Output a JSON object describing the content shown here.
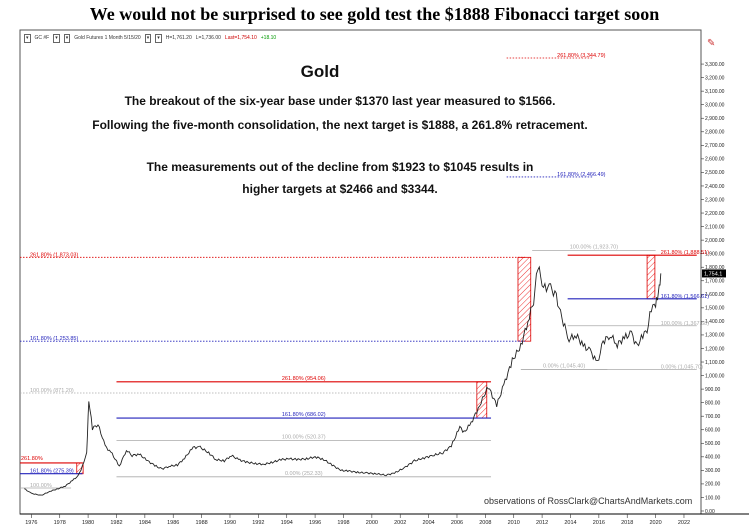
{
  "headline": "We would not be surprised to see gold test the $1888 Fibonacci target soon",
  "toolbar": {
    "symbol": "GC #F",
    "title": "Gold Futures  1 Month  5/15/20",
    "h": "H=1,761.20",
    "l": "L=1,736.00",
    "last": "Last=1,754.10",
    "change": "+18.10"
  },
  "annotation": {
    "title": "Gold",
    "line1": "The breakout of the six-year base under $1370 last year measured to $1566.",
    "line2": "Following the five-month consolidation, the next target is $1888, a 261.8% retracement.",
    "line3": "The measurements out of the decline from $1923 to $1045 results in",
    "line4": "higher targets at $2466 and $3344."
  },
  "credit": "observations of RossClark@ChartsAndMarkets.com",
  "colors": {
    "price": "#222222",
    "red": "#dd0000",
    "blue": "#2222bb",
    "gray": "#aaaaaa",
    "hatch": "#ee3333"
  },
  "chart_data": {
    "type": "line",
    "title": "Gold",
    "xlabel": "",
    "ylabel": "",
    "ylim": [
      0,
      3400
    ],
    "xlim": [
      1975.2,
      2023.2
    ],
    "x_ticks": [
      1976,
      1978,
      1980,
      1982,
      1984,
      1986,
      1988,
      1990,
      1992,
      1994,
      1996,
      1998,
      2000,
      2002,
      2004,
      2006,
      2008,
      2010,
      2012,
      2014,
      2016,
      2018,
      2020,
      2022
    ],
    "y_ticks": [
      0,
      100,
      200,
      300,
      400,
      500,
      600,
      700,
      800,
      900,
      1000,
      1100,
      1200,
      1300,
      1400,
      1500,
      1600,
      1700,
      1800,
      1900,
      2000,
      2100,
      2200,
      2300,
      2400,
      2500,
      2600,
      2700,
      2800,
      2900,
      3000,
      3100,
      3200,
      3300
    ],
    "y_tick_labels": [
      "0.00",
      "100.00",
      "200.00",
      "300.00",
      "400.00",
      "500.00",
      "600.00",
      "700.00",
      "800.00",
      "900.00",
      "1,000.00",
      "1,100.00",
      "1,200.00",
      "1,300.00",
      "1,400.00",
      "1,500.00",
      "1,600.00",
      "1,700.00",
      "1,800.00",
      "1,900.00",
      "2,000.00",
      "2,100.00",
      "2,200.00",
      "2,300.00",
      "2,400.00",
      "2,500.00",
      "2,600.00",
      "2,700.00",
      "2,800.00",
      "2,900.00",
      "3,000.00",
      "3,100.00",
      "3,200.00",
      "3,300.00"
    ],
    "last_price_label": "1,754.1",
    "series": [
      {
        "x": [
          1975.5,
          1976.0,
          1976.7,
          1977.3,
          1977.9,
          1978.4,
          1978.9,
          1979.3,
          1979.6,
          1979.9,
          1980.05,
          1980.3,
          1980.7,
          1981.2,
          1981.7,
          1982.2,
          1982.7,
          1983.1,
          1983.6,
          1984.2,
          1984.8,
          1985.2,
          1985.7,
          1986.3,
          1986.8,
          1987.4,
          1987.9,
          1988.5,
          1989.0,
          1989.6,
          1990.1,
          1990.6,
          1991.2,
          1991.8,
          1992.4,
          1993.0,
          1993.6,
          1994.2,
          1994.8,
          1995.4,
          1996.0,
          1996.6,
          1997.2,
          1997.8,
          1998.4,
          1999.0,
          1999.7,
          2000.3,
          2001.0,
          2001.6,
          2002.3,
          2003.0,
          2003.6,
          2004.3,
          2005.0,
          2005.6,
          2006.2,
          2006.5,
          2007.0,
          2007.6,
          2008.2,
          2008.8,
          2009.3,
          2009.9,
          2010.5,
          2011.0,
          2011.4,
          2011.7,
          2012.1,
          2012.6,
          2013.0,
          2013.4,
          2013.9,
          2014.4,
          2014.9,
          2015.4,
          2015.9,
          2016.3,
          2016.8,
          2017.3,
          2017.8,
          2018.3,
          2018.7,
          2019.0,
          2019.4,
          2019.7,
          2020.0,
          2020.2,
          2020.37
        ],
        "y": [
          165,
          130,
          115,
          145,
          165,
          185,
          225,
          260,
          330,
          430,
          820,
          610,
          640,
          480,
          420,
          330,
          450,
          410,
          420,
          370,
          330,
          310,
          330,
          340,
          390,
          470,
          470,
          430,
          380,
          370,
          410,
          380,
          360,
          350,
          345,
          360,
          380,
          385,
          380,
          385,
          400,
          380,
          340,
          300,
          295,
          285,
          280,
          275,
          265,
          280,
          320,
          370,
          390,
          410,
          430,
          480,
          620,
          580,
          650,
          780,
          920,
          780,
          930,
          1110,
          1220,
          1400,
          1550,
          1810,
          1650,
          1650,
          1580,
          1420,
          1270,
          1300,
          1220,
          1180,
          1090,
          1250,
          1300,
          1230,
          1280,
          1310,
          1210,
          1290,
          1330,
          1500,
          1520,
          1600,
          1754
        ]
      }
    ],
    "levels": [
      {
        "label": "261.80% (3,344.79)",
        "value": 3344.79,
        "color": "red",
        "style": "dotted",
        "x0": 2009.5,
        "x1": 2015.6,
        "label_side": "right"
      },
      {
        "label": "161.80% (2,466.49)",
        "value": 2466.49,
        "color": "blue",
        "style": "dotted",
        "x0": 2009.5,
        "x1": 2015.6,
        "label_side": "right"
      },
      {
        "label": "100.00% (1,923.70)",
        "value": 1923.7,
        "color": "gray",
        "style": "solid",
        "x0": 2011.3,
        "x1": 2020.0,
        "label_side": "mid"
      },
      {
        "label": "261.80% (1,888.51)",
        "value": 1888.51,
        "color": "red",
        "style": "solid",
        "x0": 2013.8,
        "x1": 2022.9,
        "label_side": "right"
      },
      {
        "label": "261.80% (1,873.03)",
        "value": 1873.03,
        "color": "red",
        "style": "dotted",
        "x0": 1975.2,
        "x1": 2010.8,
        "label_side": "left"
      },
      {
        "label": "161.80% (1,566.61)",
        "value": 1566.61,
        "color": "blue",
        "style": "solid",
        "x0": 2013.8,
        "x1": 2022.9,
        "label_side": "right"
      },
      {
        "label": "100.00% (1,367.68)",
        "value": 1367.68,
        "color": "gray",
        "style": "solid",
        "x0": 2013.8,
        "x1": 2022.9,
        "label_side": "right"
      },
      {
        "label": "161.80% (1,253.85)",
        "value": 1253.85,
        "color": "blue",
        "style": "dotted",
        "x0": 1975.2,
        "x1": 2010.8,
        "label_side": "left"
      },
      {
        "label": "0.00% (1,045.40)",
        "value": 1045.4,
        "color": "gray",
        "style": "solid",
        "x0": 2010.5,
        "x1": 2016.6,
        "label_side": "mid"
      },
      {
        "label": "0.00% (1,045.70)",
        "value": 1045.7,
        "color": "gray",
        "style": "solid",
        "x0": 2015.7,
        "x1": 2022.9,
        "label_side": "right"
      },
      {
        "label": "261.80% (954.06)",
        "value": 954.06,
        "color": "red",
        "style": "solid",
        "x0": 1982.0,
        "x1": 2008.4,
        "label_side": "mid"
      },
      {
        "label": "100.00% (871.20)",
        "value": 871.2,
        "color": "gray",
        "style": "dotted",
        "x0": 1975.2,
        "x1": 2009.3,
        "label_side": "left"
      },
      {
        "label": "161.80% (686.02)",
        "value": 686.02,
        "color": "blue",
        "style": "solid",
        "x0": 1982.0,
        "x1": 2008.4,
        "label_side": "mid"
      },
      {
        "label": "100.00% (520.37)",
        "value": 520.37,
        "color": "gray",
        "style": "solid",
        "x0": 1982.0,
        "x1": 2008.4,
        "label_side": "mid"
      },
      {
        "label": "261.80%",
        "value": 355,
        "color": "red",
        "style": "solid",
        "x0": 1975.2,
        "x1": 1979.6,
        "label_side": "left-above"
      },
      {
        "label": "161.80% (275.39)",
        "value": 275.39,
        "color": "blue",
        "style": "solid",
        "x0": 1975.2,
        "x1": 1979.6,
        "label_side": "left"
      },
      {
        "label": "0.00% (252.33)",
        "value": 252.33,
        "color": "gray",
        "style": "solid",
        "x0": 1982.0,
        "x1": 2008.4,
        "label_side": "mid"
      },
      {
        "label": "100.00%",
        "value": 170,
        "color": "gray",
        "style": "solid",
        "x0": 1975.2,
        "x1": 1978.8,
        "label_side": "left"
      }
    ],
    "hatched_zones": [
      {
        "x0": 1979.2,
        "x1": 1979.65,
        "y0": 275,
        "y1": 355
      },
      {
        "x0": 2007.4,
        "x1": 2008.1,
        "y0": 686,
        "y1": 954
      },
      {
        "x0": 2010.3,
        "x1": 2011.2,
        "y0": 1254,
        "y1": 1873
      },
      {
        "x0": 2019.4,
        "x1": 2019.95,
        "y0": 1567,
        "y1": 1888
      }
    ]
  }
}
